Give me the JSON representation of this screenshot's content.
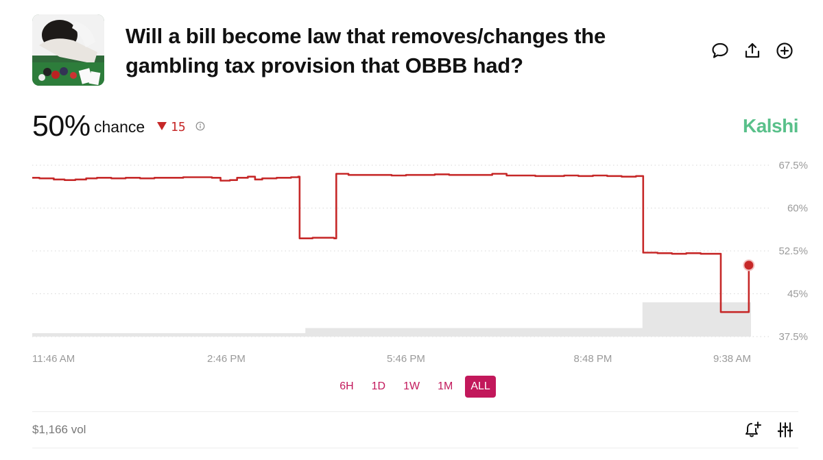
{
  "market": {
    "title": "Will a bill become law that removes/changes the gambling tax provision that OBBB had?",
    "thumbnail_icon": "gambler-photo"
  },
  "header_actions": [
    {
      "name": "comment-icon",
      "label": "Comment"
    },
    {
      "name": "share-icon",
      "label": "Share"
    },
    {
      "name": "add-icon",
      "label": "Add"
    }
  ],
  "probability": {
    "value": "50%",
    "label": "chance",
    "delta": "15",
    "delta_direction": "down",
    "delta_color": "#c62828",
    "info_icon": "info-icon"
  },
  "brand": {
    "name": "Kalshi",
    "color": "#59c08a"
  },
  "colors": {
    "line": "#c62828",
    "accent": "#c2185b",
    "volume": "#e6e6e6",
    "grid": "#d6d6d6"
  },
  "chart_data": {
    "type": "line",
    "y_ticks": [
      "67.5%",
      "60%",
      "52.5%",
      "45%",
      "37.5%"
    ],
    "y_tick_values": [
      67.5,
      60,
      52.5,
      45,
      37.5
    ],
    "ylim": [
      37.5,
      67.5
    ],
    "x_ticks": [
      "11:46 AM",
      "2:46 PM",
      "5:46 PM",
      "8:48 PM",
      "9:38 AM"
    ],
    "x_tick_positions": [
      0.0,
      0.27,
      0.52,
      0.78,
      1.0
    ],
    "grid": true,
    "series": [
      {
        "values": [
          [
            0.0,
            65.3
          ],
          [
            0.01,
            65.2
          ],
          [
            0.03,
            65.0
          ],
          [
            0.045,
            64.9
          ],
          [
            0.06,
            65.0
          ],
          [
            0.075,
            65.2
          ],
          [
            0.09,
            65.3
          ],
          [
            0.11,
            65.2
          ],
          [
            0.13,
            65.3
          ],
          [
            0.15,
            65.2
          ],
          [
            0.17,
            65.3
          ],
          [
            0.19,
            65.3
          ],
          [
            0.21,
            65.4
          ],
          [
            0.23,
            65.4
          ],
          [
            0.25,
            65.3
          ],
          [
            0.262,
            64.8
          ],
          [
            0.275,
            64.9
          ],
          [
            0.285,
            65.3
          ],
          [
            0.3,
            65.5
          ],
          [
            0.31,
            65.0
          ],
          [
            0.32,
            65.2
          ],
          [
            0.34,
            65.3
          ],
          [
            0.36,
            65.4
          ],
          [
            0.37,
            65.5
          ],
          [
            0.372,
            54.7
          ],
          [
            0.38,
            54.7
          ],
          [
            0.39,
            54.8
          ],
          [
            0.4,
            54.8
          ],
          [
            0.42,
            54.7
          ],
          [
            0.423,
            66.0
          ],
          [
            0.44,
            65.8
          ],
          [
            0.46,
            65.8
          ],
          [
            0.48,
            65.8
          ],
          [
            0.5,
            65.7
          ],
          [
            0.52,
            65.8
          ],
          [
            0.54,
            65.8
          ],
          [
            0.56,
            65.9
          ],
          [
            0.58,
            65.8
          ],
          [
            0.6,
            65.8
          ],
          [
            0.62,
            65.8
          ],
          [
            0.64,
            66.0
          ],
          [
            0.66,
            65.7
          ],
          [
            0.68,
            65.7
          ],
          [
            0.7,
            65.6
          ],
          [
            0.72,
            65.6
          ],
          [
            0.74,
            65.7
          ],
          [
            0.76,
            65.6
          ],
          [
            0.78,
            65.7
          ],
          [
            0.8,
            65.6
          ],
          [
            0.82,
            65.5
          ],
          [
            0.84,
            65.6
          ],
          [
            0.847,
            65.6
          ],
          [
            0.85,
            52.2
          ],
          [
            0.87,
            52.1
          ],
          [
            0.89,
            52.0
          ],
          [
            0.91,
            52.1
          ],
          [
            0.93,
            52.0
          ],
          [
            0.955,
            52.0
          ],
          [
            0.958,
            41.8
          ],
          [
            0.97,
            41.8
          ],
          [
            0.985,
            41.8
          ],
          [
            0.995,
            41.8
          ],
          [
            0.997,
            50.0
          ]
        ]
      }
    ],
    "volume_steps": [
      [
        0.0,
        0.02
      ],
      [
        0.38,
        0.05
      ],
      [
        0.849,
        0.2
      ],
      [
        1.0,
        0.2
      ]
    ]
  },
  "time_ranges": {
    "items": [
      "6H",
      "1D",
      "1W",
      "1M",
      "ALL"
    ],
    "selected": "ALL"
  },
  "footer": {
    "volume": "$1,166 vol",
    "icons": [
      "add-alert-icon",
      "sliders-icon"
    ]
  }
}
